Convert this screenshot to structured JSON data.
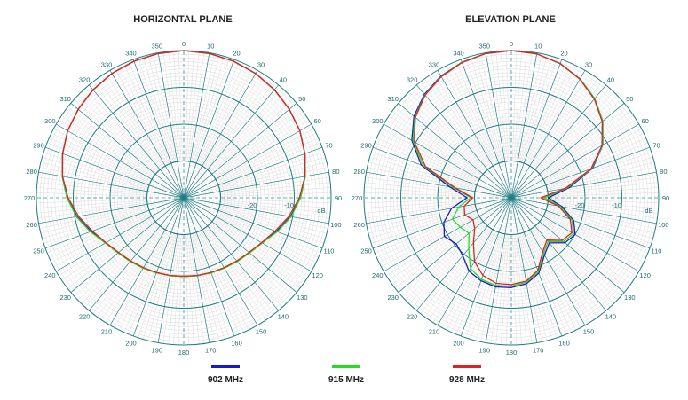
{
  "chart_data": [
    {
      "type": "polar",
      "title": "HORIZONTAL PLANE",
      "radial_unit": "dB",
      "radial_ticks": [
        "-10",
        "-20"
      ],
      "r_range_db": [
        -40,
        0
      ],
      "angle_direction": "clockwise",
      "angle_zero": "top",
      "angle_ticks": [
        "0",
        "10",
        "20",
        "30",
        "40",
        "50",
        "60",
        "70",
        "80",
        "90",
        "100",
        "110",
        "120",
        "130",
        "140",
        "150",
        "160",
        "170",
        "180",
        "190",
        "200",
        "210",
        "220",
        "230",
        "240",
        "250",
        "260",
        "270",
        "280",
        "290",
        "300",
        "310",
        "320",
        "330",
        "340",
        "350"
      ],
      "grid": true,
      "series": [
        {
          "name": "902 MHz",
          "color": "#1a1acc",
          "angles": [
            0,
            10,
            20,
            30,
            40,
            50,
            60,
            70,
            80,
            90,
            100,
            110,
            120,
            130,
            140,
            150,
            160,
            170,
            180,
            190,
            200,
            210,
            220,
            230,
            240,
            250,
            260,
            270,
            280,
            290,
            300,
            310,
            320,
            330,
            340,
            350
          ],
          "values_db": [
            0,
            -0.2,
            -0.5,
            -1,
            -1.7,
            -2.6,
            -3.6,
            -5,
            -6.5,
            -8.3,
            -10.6,
            -13.2,
            -15.5,
            -16.8,
            -17.5,
            -18,
            -18.4,
            -18.5,
            -18.6,
            -18.5,
            -18.4,
            -18,
            -17.5,
            -16.8,
            -15.5,
            -13.2,
            -10.6,
            -8.3,
            -6.5,
            -5,
            -3.6,
            -2.6,
            -1.7,
            -1,
            -0.5,
            -0.2
          ]
        },
        {
          "name": "915 MHz",
          "color": "#22dd22",
          "angles": [
            0,
            10,
            20,
            30,
            40,
            50,
            60,
            70,
            80,
            90,
            100,
            110,
            120,
            130,
            140,
            150,
            160,
            170,
            180,
            190,
            200,
            210,
            220,
            230,
            240,
            250,
            260,
            270,
            280,
            290,
            300,
            310,
            320,
            330,
            340,
            350
          ],
          "values_db": [
            0,
            -0.2,
            -0.5,
            -1,
            -1.7,
            -2.6,
            -3.6,
            -5,
            -6.5,
            -8.3,
            -10.4,
            -13,
            -15.4,
            -16.7,
            -17.4,
            -17.9,
            -18.3,
            -18.5,
            -18.6,
            -18.5,
            -18.3,
            -17.9,
            -17.4,
            -16.7,
            -15.4,
            -13,
            -10.4,
            -8.3,
            -6.5,
            -5,
            -3.6,
            -2.6,
            -1.7,
            -1,
            -0.5,
            -0.2
          ]
        },
        {
          "name": "928 MHz",
          "color": "#dd2222",
          "angles": [
            0,
            10,
            20,
            30,
            40,
            50,
            60,
            70,
            80,
            90,
            100,
            110,
            120,
            130,
            140,
            150,
            160,
            170,
            180,
            190,
            200,
            210,
            220,
            230,
            240,
            250,
            260,
            270,
            280,
            290,
            300,
            310,
            320,
            330,
            340,
            350
          ],
          "values_db": [
            0,
            -0.2,
            -0.5,
            -1,
            -1.7,
            -2.6,
            -3.6,
            -5,
            -6.6,
            -8.6,
            -11,
            -13.6,
            -15.6,
            -16.9,
            -17.6,
            -18.1,
            -18.4,
            -18.6,
            -18.7,
            -18.6,
            -18.4,
            -18.1,
            -17.6,
            -16.9,
            -15.6,
            -13.6,
            -11,
            -8.6,
            -6.6,
            -5,
            -3.6,
            -2.6,
            -1.7,
            -1,
            -0.5,
            -0.2
          ]
        }
      ]
    },
    {
      "type": "polar",
      "title": "ELEVATION PLANE",
      "radial_unit": "dB",
      "radial_ticks": [
        "-10",
        "-20"
      ],
      "r_range_db": [
        -40,
        0
      ],
      "angle_direction": "clockwise",
      "angle_zero": "top",
      "angle_ticks": [
        "0",
        "10",
        "20",
        "30",
        "40",
        "50",
        "60",
        "70",
        "80",
        "90",
        "100",
        "110",
        "120",
        "130",
        "140",
        "150",
        "160",
        "170",
        "180",
        "190",
        "200",
        "210",
        "220",
        "230",
        "240",
        "250",
        "260",
        "270",
        "280",
        "290",
        "300",
        "310",
        "320",
        "330",
        "340",
        "350"
      ],
      "grid": true,
      "series": [
        {
          "name": "902 MHz",
          "color": "#1a1acc",
          "angles": [
            0,
            10,
            20,
            30,
            40,
            50,
            60,
            70,
            80,
            90,
            100,
            110,
            120,
            130,
            140,
            150,
            160,
            170,
            180,
            190,
            200,
            210,
            220,
            230,
            240,
            250,
            260,
            270,
            280,
            290,
            300,
            310,
            320,
            330,
            340,
            350
          ],
          "values_db": [
            0,
            -0.3,
            -1.2,
            -2.7,
            -4.8,
            -7.6,
            -11.3,
            -16.5,
            -24,
            -30,
            -26,
            -22,
            -20,
            -21,
            -24,
            -22,
            -18.2,
            -16.3,
            -15.6,
            -15.4,
            -16,
            -17,
            -19.5,
            -20.5,
            -19,
            -20.5,
            -23.5,
            -28,
            -23,
            -14,
            -8.8,
            -5.5,
            -3.3,
            -1.8,
            -0.8,
            -0.2
          ]
        },
        {
          "name": "915 MHz",
          "color": "#22dd22",
          "angles": [
            0,
            10,
            20,
            30,
            40,
            50,
            60,
            70,
            80,
            90,
            100,
            110,
            120,
            130,
            140,
            150,
            160,
            170,
            180,
            190,
            200,
            210,
            220,
            230,
            240,
            250,
            260,
            270,
            280,
            290,
            300,
            310,
            320,
            330,
            340,
            350
          ],
          "values_db": [
            0,
            -0.3,
            -1.2,
            -2.7,
            -4.8,
            -7.6,
            -11.4,
            -16.8,
            -24.5,
            -31,
            -26.5,
            -22.5,
            -20.5,
            -21.5,
            -24.5,
            -22.5,
            -18.6,
            -16.7,
            -16,
            -15.8,
            -16.4,
            -17.8,
            -22,
            -25,
            -24,
            -23,
            -25.5,
            -29,
            -24,
            -14.6,
            -9.2,
            -5.8,
            -3.5,
            -1.9,
            -0.8,
            -0.2
          ]
        },
        {
          "name": "928 MHz",
          "color": "#dd2222",
          "angles": [
            0,
            10,
            20,
            30,
            40,
            50,
            60,
            70,
            80,
            90,
            100,
            110,
            120,
            130,
            140,
            150,
            160,
            170,
            180,
            190,
            200,
            210,
            220,
            230,
            240,
            250,
            260,
            270,
            280,
            290,
            300,
            310,
            320,
            330,
            340,
            350
          ],
          "values_db": [
            0,
            -0.3,
            -1.2,
            -2.8,
            -5,
            -7.8,
            -11.6,
            -17,
            -25,
            -32,
            -27,
            -23,
            -21,
            -22,
            -25,
            -23,
            -19,
            -17,
            -16.4,
            -16.4,
            -17.5,
            -20,
            -24,
            -27,
            -28,
            -26.5,
            -27,
            -29.5,
            -24.5,
            -15.2,
            -9.6,
            -6,
            -3.6,
            -2,
            -0.9,
            -0.2
          ]
        }
      ]
    }
  ],
  "legend": [
    {
      "label": "902 MHz",
      "color": "#1a1acc"
    },
    {
      "label": "915 MHz",
      "color": "#22dd22"
    },
    {
      "label": "928 MHz",
      "color": "#dd2222"
    }
  ]
}
